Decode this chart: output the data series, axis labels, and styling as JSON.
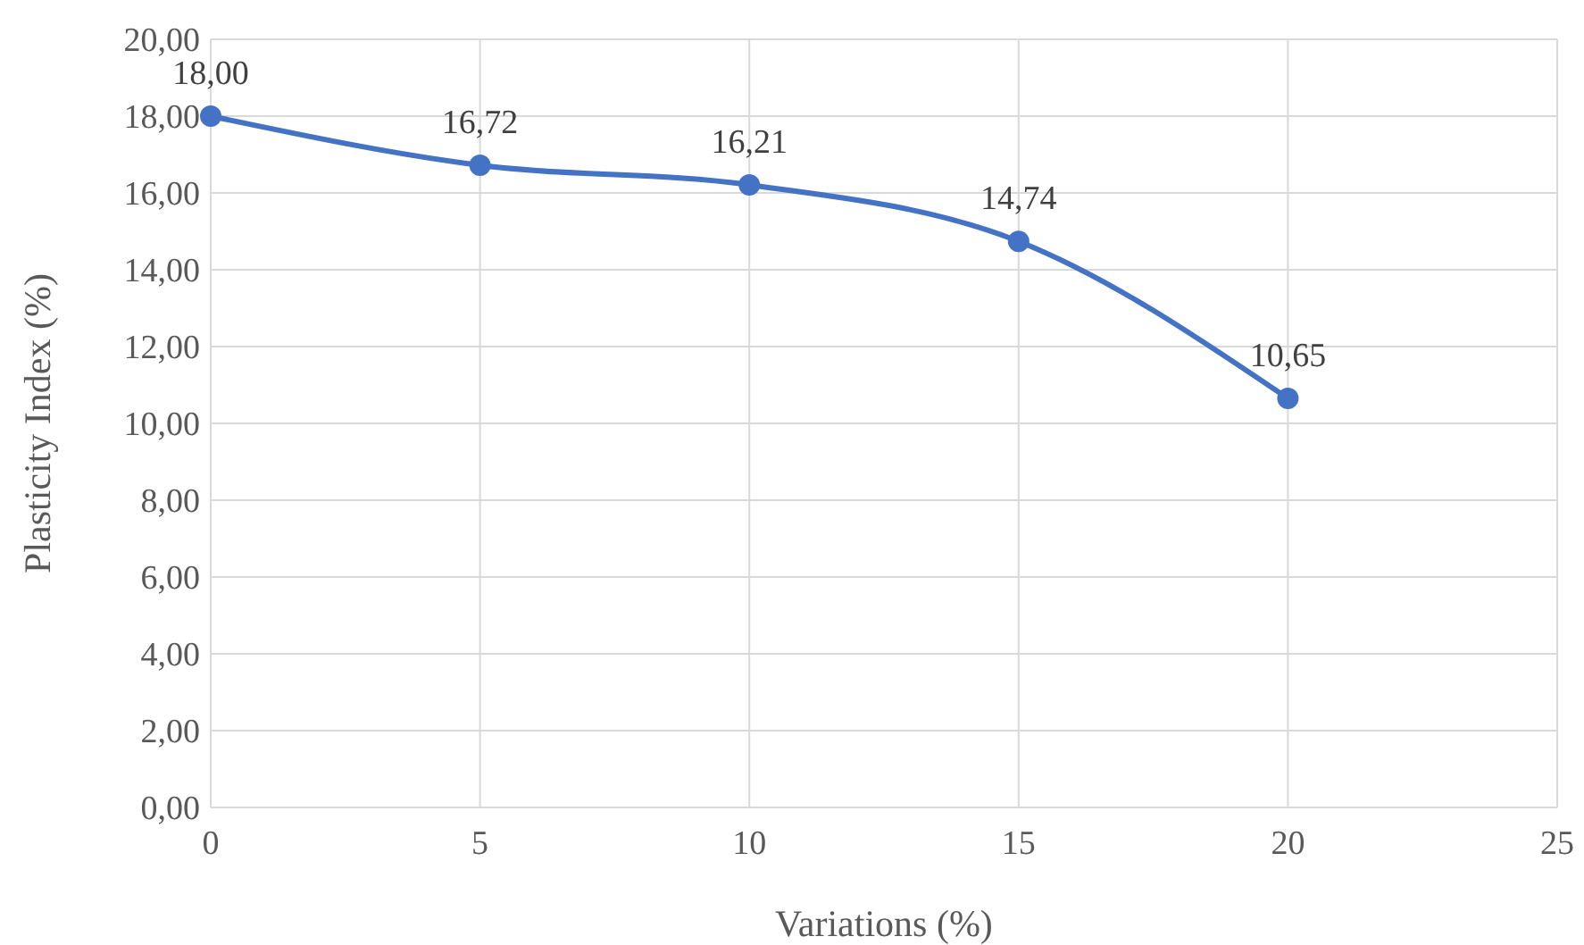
{
  "chart_data": {
    "type": "line",
    "xlabel": "Variations (%)",
    "ylabel": "Plasticity Index (%)",
    "x": [
      0,
      5,
      10,
      15,
      20
    ],
    "series": [
      {
        "color": "#4472c4",
        "values": [
          18.0,
          16.72,
          16.21,
          14.74,
          10.65
        ],
        "value_labels": [
          "18,00",
          "16,72",
          "16,21",
          "14,74",
          "10,65"
        ]
      }
    ],
    "xlim": [
      0,
      25
    ],
    "xticks": [
      0,
      5,
      10,
      15,
      20,
      25
    ],
    "ylim": [
      0,
      20
    ],
    "yticks": [
      {
        "value": 0,
        "label": "0,00"
      },
      {
        "value": 2,
        "label": "2,00"
      },
      {
        "value": 4,
        "label": "4,00"
      },
      {
        "value": 6,
        "label": "6,00"
      },
      {
        "value": 8,
        "label": "8,00"
      },
      {
        "value": 10,
        "label": "10,00"
      },
      {
        "value": 12,
        "label": "12,00"
      },
      {
        "value": 14,
        "label": "14,00"
      },
      {
        "value": 16,
        "label": "16,00"
      },
      {
        "value": 18,
        "label": "18,00"
      },
      {
        "value": 20,
        "label": "20,00"
      }
    ],
    "grid": true,
    "marker": "circle",
    "line_style": "solid"
  }
}
